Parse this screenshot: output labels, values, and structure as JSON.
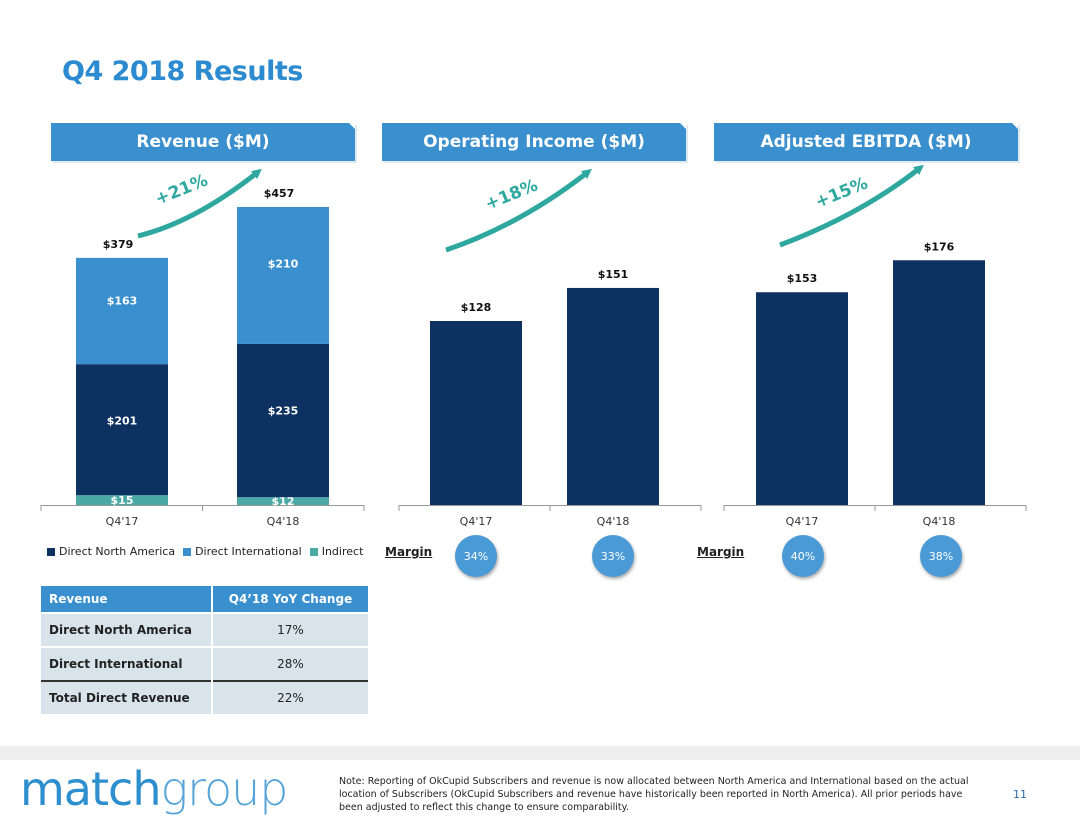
{
  "title": "Q4 2018 Results",
  "colors": {
    "dark": "#0d3262",
    "light": "#3a8fcf",
    "teal": "#4aa9a4",
    "header": "#3a8fcf",
    "arrow": "#2ea89f"
  },
  "chart_data": [
    {
      "type": "bar",
      "stacked": true,
      "title": "Revenue ($M)",
      "growth": "+21%",
      "categories": [
        "Q4'17",
        "Q4'18"
      ],
      "totals": [
        "$379",
        "$457"
      ],
      "total_values": [
        379,
        457
      ],
      "ylim": [
        0,
        457
      ],
      "series": [
        {
          "name": "Indirect",
          "values": [
            15,
            12
          ],
          "labels": [
            "$15",
            "$12"
          ]
        },
        {
          "name": "Direct North America",
          "values": [
            201,
            235
          ],
          "labels": [
            "$201",
            "$235"
          ]
        },
        {
          "name": "Direct International",
          "values": [
            163,
            210
          ],
          "labels": [
            "$163",
            "$210"
          ]
        }
      ],
      "legend": [
        "Direct North America",
        "Direct International",
        "Indirect"
      ]
    },
    {
      "type": "bar",
      "title": "Operating Income ($M)",
      "growth": "+18%",
      "categories": [
        "Q4'17",
        "Q4'18"
      ],
      "values": [
        128,
        151
      ],
      "labels": [
        "$128",
        "$151"
      ],
      "ylim": [
        0,
        220
      ],
      "margin_label": "Margin",
      "margins": [
        "34%",
        "33%"
      ]
    },
    {
      "type": "bar",
      "title": "Adjusted EBITDA ($M)",
      "growth": "+15%",
      "categories": [
        "Q4'17",
        "Q4'18"
      ],
      "values": [
        153,
        176
      ],
      "labels": [
        "$153",
        "$176"
      ],
      "ylim": [
        0,
        220
      ],
      "margin_label": "Margin",
      "margins": [
        "40%",
        "38%"
      ]
    }
  ],
  "table": {
    "headers": [
      "Revenue",
      "Q4’18 YoY Change"
    ],
    "rows": [
      {
        "label": "Direct North America",
        "value": "17%"
      },
      {
        "label": "Direct International",
        "value": "28%"
      },
      {
        "label": "Total Direct Revenue",
        "value": "22%"
      }
    ]
  },
  "footer": {
    "logo_a": "match",
    "logo_b": "group",
    "note": "Note: Reporting of OkCupid Subscribers and revenue is now allocated between North America and International based on the actual location of Subscribers (OkCupid Subscribers and revenue have historically been reported in North America).  All prior periods have been adjusted to reflect this change to ensure comparability.",
    "page": "11"
  }
}
